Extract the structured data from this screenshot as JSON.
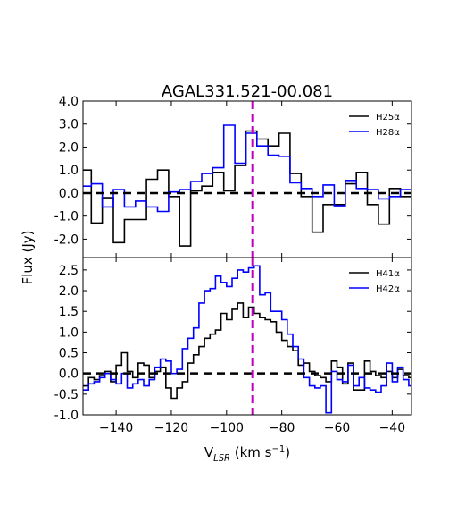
{
  "figure": {
    "title": "AGAL331.521-00.081",
    "ylabel": "Flux (Jy)",
    "xlabel_main": "V",
    "xlabel_sub": "LSR",
    "xlabel_units": " (km s",
    "xlabel_exp": "−1",
    "xlabel_close": ")"
  },
  "colors": {
    "black": "#000000",
    "blue": "#0000ff",
    "magenta": "#bf00bf"
  },
  "chart_data": [
    {
      "type": "line",
      "step": true,
      "xlim": [
        -152,
        -33
      ],
      "ylim": [
        -2.8,
        4.0
      ],
      "yticks": [
        -2.0,
        -1.0,
        0.0,
        1.0,
        2.0,
        3.0,
        4.0
      ],
      "ytick_labels": [
        "-2.0",
        "-1.0",
        "0.0",
        "1.0",
        "2.0",
        "3.0",
        "4.0"
      ],
      "vline_x": -90.5,
      "hline_y": 0.0,
      "legend_position": "top-right",
      "series": [
        {
          "name": "H25α",
          "color": "black",
          "x": [
            -152,
            -149,
            -145,
            -141,
            -137,
            -133,
            -129,
            -125,
            -121,
            -117,
            -113,
            -109,
            -105,
            -101,
            -97,
            -93,
            -89,
            -85,
            -81,
            -77,
            -73,
            -69,
            -65,
            -61,
            -57,
            -53,
            -49,
            -45,
            -41,
            -37,
            -33
          ],
          "y": [
            1.0,
            -1.3,
            -0.2,
            -2.15,
            -1.15,
            -1.15,
            0.6,
            1.0,
            -0.15,
            -2.3,
            0.1,
            0.3,
            0.9,
            0.1,
            1.2,
            2.7,
            2.35,
            2.05,
            2.6,
            0.85,
            -0.15,
            -1.7,
            -0.5,
            -0.5,
            0.4,
            0.9,
            -0.5,
            -1.35,
            0.2,
            -0.15,
            0.4
          ]
        },
        {
          "name": "H28α",
          "color": "blue",
          "x": [
            -152,
            -149,
            -145,
            -141,
            -137,
            -133,
            -129,
            -125,
            -121,
            -117,
            -113,
            -109,
            -105,
            -101,
            -97,
            -93,
            -89,
            -85,
            -81,
            -77,
            -73,
            -69,
            -65,
            -61,
            -57,
            -53,
            -49,
            -45,
            -41,
            -37,
            -33
          ],
          "y": [
            0.3,
            0.4,
            -0.6,
            0.15,
            -0.6,
            -0.35,
            -0.6,
            -0.8,
            0.05,
            0.15,
            0.5,
            0.85,
            1.1,
            2.95,
            1.3,
            2.6,
            2.05,
            1.65,
            1.6,
            0.45,
            0.2,
            -0.15,
            0.35,
            -0.55,
            0.55,
            0.2,
            0.15,
            -0.25,
            -0.15,
            0.15,
            1.0
          ]
        }
      ]
    },
    {
      "type": "line",
      "step": true,
      "xlim": [
        -152,
        -33
      ],
      "ylim": [
        -1.0,
        2.8
      ],
      "yticks": [
        -1.0,
        -0.5,
        0.0,
        0.5,
        1.0,
        1.5,
        2.0,
        2.5
      ],
      "ytick_labels": [
        "-1.0",
        "-0.5",
        "0.0",
        "0.5",
        "1.0",
        "1.5",
        "2.0",
        "2.5"
      ],
      "xticks": [
        -140,
        -120,
        -100,
        -80,
        -60,
        -40
      ],
      "xtick_labels": [
        "−140",
        "−120",
        "−100",
        "−80",
        "−60",
        "−40"
      ],
      "vline_x": -90.5,
      "hline_y": 0.0,
      "legend_position": "top-right",
      "series": [
        {
          "name": "H41α",
          "color": "black",
          "x": [
            -152,
            -150,
            -148,
            -146,
            -144,
            -142,
            -140,
            -138,
            -136,
            -134,
            -132,
            -130,
            -128,
            -126,
            -124,
            -122,
            -120,
            -118,
            -116,
            -114,
            -112,
            -110,
            -108,
            -106,
            -104,
            -102,
            -100,
            -98,
            -96,
            -94,
            -92,
            -90,
            -88,
            -86,
            -84,
            -82,
            -80,
            -78,
            -76,
            -74,
            -72,
            -70,
            -68,
            -66,
            -64,
            -62,
            -60,
            -58,
            -56,
            -54,
            -52,
            -50,
            -48,
            -46,
            -44,
            -42,
            -40,
            -38,
            -36,
            -34
          ],
          "y": [
            -0.3,
            -0.1,
            -0.15,
            -0.05,
            0.05,
            -0.2,
            0.2,
            0.5,
            0.05,
            -0.1,
            0.25,
            0.2,
            -0.1,
            0.05,
            0.15,
            -0.35,
            -0.6,
            -0.35,
            -0.2,
            0.25,
            0.45,
            0.65,
            0.85,
            0.95,
            1.05,
            1.45,
            1.3,
            1.55,
            1.7,
            1.35,
            1.6,
            1.45,
            1.35,
            1.3,
            1.25,
            1.0,
            0.8,
            0.65,
            0.55,
            0.2,
            0.25,
            0.05,
            -0.05,
            -0.1,
            -0.2,
            0.3,
            0.15,
            -0.25,
            0.25,
            -0.4,
            -0.4,
            0.3,
            0.05,
            -0.05,
            -0.1,
            0.05,
            -0.1,
            0.1,
            -0.05,
            -0.1
          ]
        },
        {
          "name": "H42α",
          "color": "blue",
          "x": [
            -152,
            -150,
            -148,
            -146,
            -144,
            -142,
            -140,
            -138,
            -136,
            -134,
            -132,
            -130,
            -128,
            -126,
            -124,
            -122,
            -120,
            -118,
            -116,
            -114,
            -112,
            -110,
            -108,
            -106,
            -104,
            -102,
            -100,
            -98,
            -96,
            -94,
            -92,
            -90,
            -88,
            -86,
            -84,
            -82,
            -80,
            -78,
            -76,
            -74,
            -72,
            -70,
            -68,
            -66,
            -64,
            -62,
            -60,
            -58,
            -56,
            -54,
            -52,
            -50,
            -48,
            -46,
            -44,
            -42,
            -40,
            -38,
            -36,
            -34
          ],
          "y": [
            -0.4,
            -0.25,
            -0.2,
            -0.1,
            0.0,
            -0.15,
            -0.25,
            0.0,
            -0.35,
            -0.25,
            -0.15,
            -0.3,
            -0.15,
            0.15,
            0.35,
            0.3,
            0.0,
            0.1,
            0.6,
            0.85,
            1.1,
            1.7,
            2.0,
            2.05,
            2.35,
            2.2,
            2.1,
            2.3,
            2.5,
            2.45,
            2.55,
            2.6,
            1.9,
            1.95,
            1.5,
            1.5,
            1.3,
            0.95,
            0.65,
            0.35,
            -0.1,
            -0.3,
            -0.35,
            -0.3,
            -0.95,
            0.05,
            -0.15,
            -0.2,
            0.2,
            -0.3,
            -0.1,
            -0.35,
            -0.4,
            -0.45,
            -0.3,
            0.25,
            -0.2,
            0.15,
            -0.15,
            -0.3
          ]
        }
      ]
    }
  ]
}
